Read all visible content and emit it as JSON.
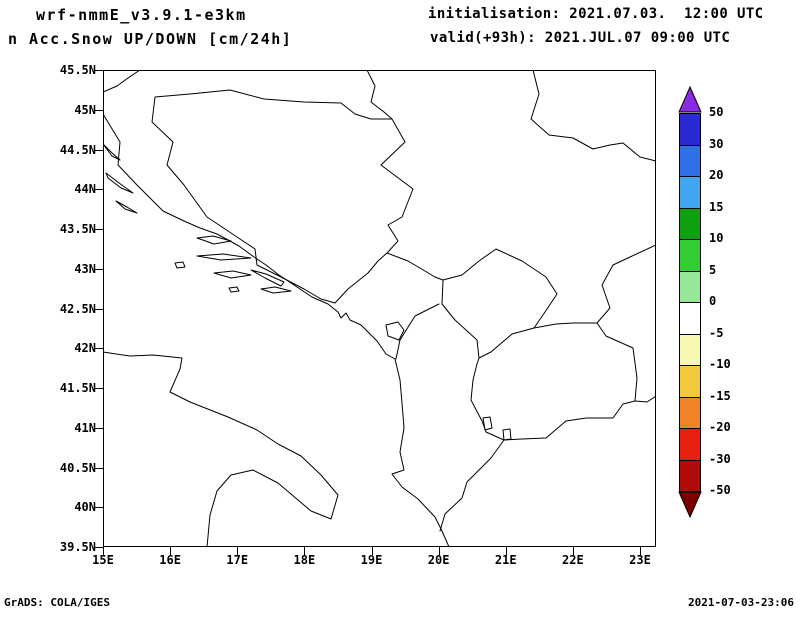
{
  "header": {
    "model_title": "wrf-nmmE_v3.9.1-e3km",
    "product_title": "n Acc.Snow UP/DOWN [cm/24h]",
    "init_line": "initialisation: 2021.07.03.  12:00 UTC",
    "valid_line": "valid(+93h): 2021.JUL.07 09:00 UTC"
  },
  "footer": {
    "credit": "GrADS: COLA/IGES",
    "timestamp": "2021-07-03-23:06"
  },
  "chart_data": {
    "type": "map",
    "projection": "lat/lon",
    "region": "Adriatic Sea / Balkans",
    "variable": "24h accumulated snow UP/DOWN [cm/24h]",
    "field_summary": "no colored snow contours visible; field is ~0 cm over the whole domain (white)",
    "x_axis": {
      "ticks": [
        "15E",
        "16E",
        "17E",
        "18E",
        "19E",
        "20E",
        "21E",
        "22E",
        "23E"
      ],
      "range_deg_east": [
        15,
        23.2
      ]
    },
    "y_axis": {
      "ticks": [
        "45.5N",
        "45N",
        "44.5N",
        "44N",
        "43.5N",
        "43N",
        "42.5N",
        "42N",
        "41.5N",
        "41N",
        "40.5N",
        "40N",
        "39.5N"
      ],
      "range_deg_north": [
        39.5,
        45.5
      ]
    },
    "colorbar": {
      "unit": "cm/24h",
      "levels": [
        "50",
        "30",
        "20",
        "15",
        "10",
        "5",
        "0",
        "-5",
        "-10",
        "-15",
        "-20",
        "-30",
        "-50"
      ],
      "segment_colors": [
        "#2a2ad4",
        "#2f6fe8",
        "#41a6f0",
        "#0fa00f",
        "#32cd32",
        "#98e698",
        "#ffffff",
        "#f8f8b0",
        "#f2c83c",
        "#f08228",
        "#e82010",
        "#b00a0a"
      ],
      "arrow_top_color": "#8a2be2",
      "arrow_bottom_color": "#7a0000"
    }
  }
}
